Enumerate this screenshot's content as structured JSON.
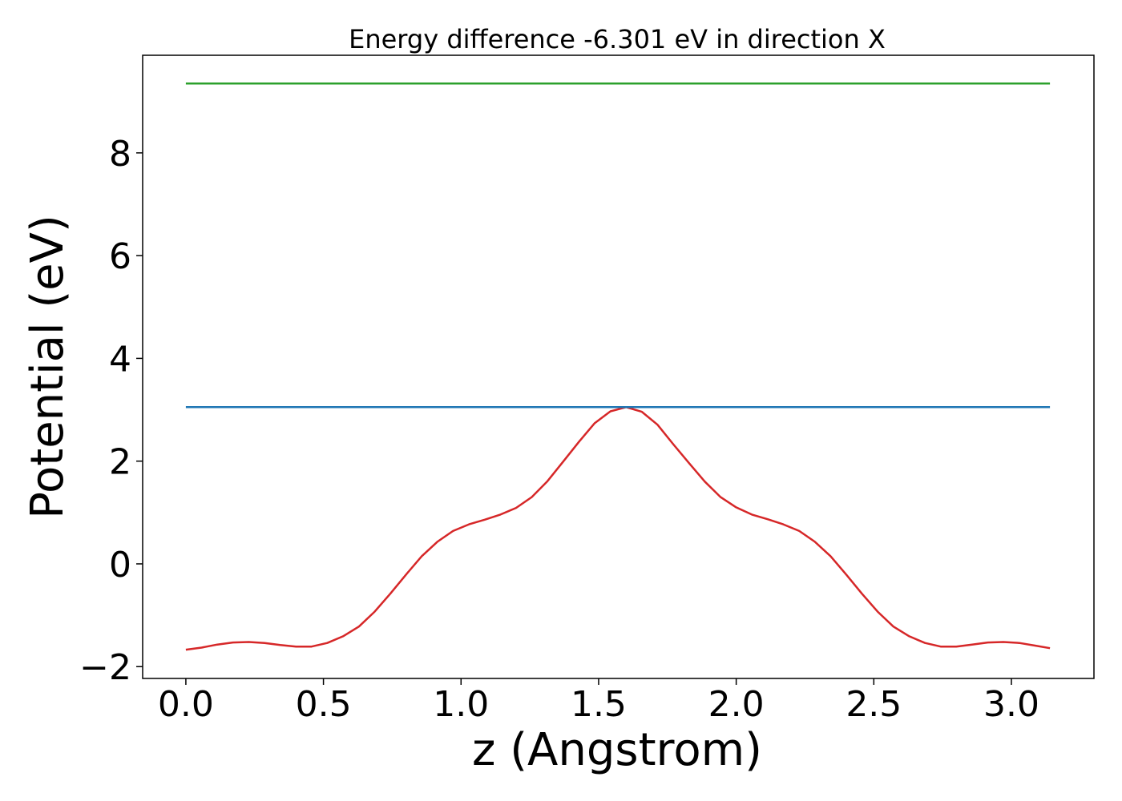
{
  "chart_data": {
    "type": "line",
    "title": "Energy difference -6.301 eV in direction X",
    "xlabel": "z (Angstrom)",
    "ylabel": "Potential (eV)",
    "xlim": [
      -0.157,
      3.3
    ],
    "ylim": [
      -2.23,
      9.9
    ],
    "xticks": [
      0.0,
      0.5,
      1.0,
      1.5,
      2.0,
      2.5,
      3.0
    ],
    "xtick_labels": [
      "0.0",
      "0.5",
      "1.0",
      "1.5",
      "2.0",
      "2.5",
      "3.0"
    ],
    "yticks": [
      -2,
      0,
      2,
      4,
      6,
      8
    ],
    "ytick_labels": [
      "−2",
      "0",
      "2",
      "4",
      "6",
      "8"
    ],
    "grid": false,
    "legend": false,
    "series": [
      {
        "color": "#d62728",
        "x": [
          0.0,
          0.057,
          0.114,
          0.171,
          0.229,
          0.286,
          0.343,
          0.4,
          0.457,
          0.514,
          0.571,
          0.629,
          0.686,
          0.743,
          0.8,
          0.857,
          0.914,
          0.971,
          1.029,
          1.086,
          1.143,
          1.2,
          1.257,
          1.314,
          1.371,
          1.429,
          1.486,
          1.543,
          1.6,
          1.657,
          1.714,
          1.771,
          1.829,
          1.886,
          1.943,
          2.0,
          2.057,
          2.114,
          2.171,
          2.229,
          2.286,
          2.343,
          2.4,
          2.457,
          2.514,
          2.571,
          2.629,
          2.686,
          2.743,
          2.8,
          2.857,
          2.914,
          2.971,
          3.029,
          3.086,
          3.14
        ],
        "y": [
          -1.67,
          -1.63,
          -1.57,
          -1.53,
          -1.52,
          -1.54,
          -1.58,
          -1.61,
          -1.61,
          -1.54,
          -1.41,
          -1.22,
          -0.93,
          -0.58,
          -0.21,
          0.15,
          0.43,
          0.64,
          0.77,
          0.86,
          0.96,
          1.09,
          1.3,
          1.61,
          1.99,
          2.38,
          2.74,
          2.97,
          3.05,
          2.96,
          2.71,
          2.33,
          1.96,
          1.6,
          1.3,
          1.1,
          0.96,
          0.87,
          0.77,
          0.64,
          0.43,
          0.15,
          -0.21,
          -0.58,
          -0.93,
          -1.22,
          -1.41,
          -1.54,
          -1.61,
          -1.61,
          -1.57,
          -1.53,
          -1.52,
          -1.54,
          -1.59,
          -1.64
        ]
      },
      {
        "color": "#1f77b4",
        "x": [
          0.0,
          3.14
        ],
        "y": [
          3.05,
          3.05
        ]
      },
      {
        "color": "#2ca02c",
        "x": [
          0.0,
          3.14
        ],
        "y": [
          9.35,
          9.35
        ]
      }
    ]
  }
}
